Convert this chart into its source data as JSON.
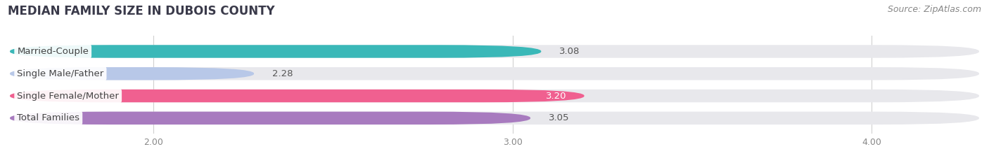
{
  "title": "MEDIAN FAMILY SIZE IN DUBOIS COUNTY",
  "source": "Source: ZipAtlas.com",
  "categories": [
    "Married-Couple",
    "Single Male/Father",
    "Single Female/Mother",
    "Total Families"
  ],
  "values": [
    3.08,
    2.28,
    3.2,
    3.05
  ],
  "bar_colors": [
    "#3ab8b8",
    "#b8c8e8",
    "#f06090",
    "#a87bbf"
  ],
  "value_inside": [
    false,
    false,
    true,
    false
  ],
  "xlim": [
    1.6,
    4.3
  ],
  "xticks": [
    2.0,
    3.0,
    4.0
  ],
  "background_color": "#ffffff",
  "bar_bg_color": "#e8e8ec",
  "title_fontsize": 12,
  "label_fontsize": 9.5,
  "value_fontsize": 9.5,
  "source_fontsize": 9
}
